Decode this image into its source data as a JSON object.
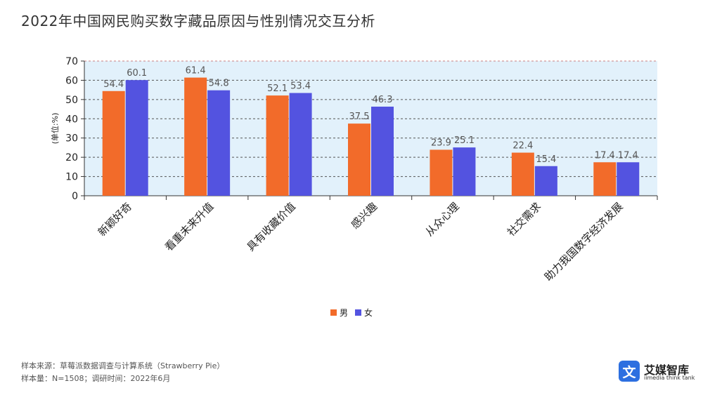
{
  "page": {
    "title": "2022年中国网民购买数字藏品原因与性别情况交互分析",
    "source_line1": "样本来源：草莓派数据调查与计算系统（Strawberry Pie）",
    "source_line2": "样本量：N=1508；调研时间：2022年6月"
  },
  "logo": {
    "mark": "文",
    "name": "艾媒智库",
    "subtitle": "iimedia think tank"
  },
  "chart_data": {
    "type": "bar",
    "categories": [
      "新颖好奇",
      "看重未来升值",
      "具有收藏价值",
      "感兴趣",
      "从众心理",
      "社交需求",
      "助力我国数字经济发展"
    ],
    "series": [
      {
        "name": "男",
        "color": "#f26b2a",
        "values": [
          54.4,
          61.4,
          52.1,
          37.5,
          23.9,
          22.4,
          17.4
        ]
      },
      {
        "name": "女",
        "color": "#5353e0",
        "values": [
          60.1,
          54.8,
          53.4,
          46.3,
          25.1,
          15.4,
          17.4
        ]
      }
    ],
    "ylabel": "(单位:%)",
    "ylim": [
      0,
      70
    ],
    "yticks": [
      0,
      10,
      20,
      30,
      40,
      50,
      60,
      70
    ],
    "grid": true,
    "legend_position": "bottom-center",
    "plot_background": "#e2f1fb"
  }
}
